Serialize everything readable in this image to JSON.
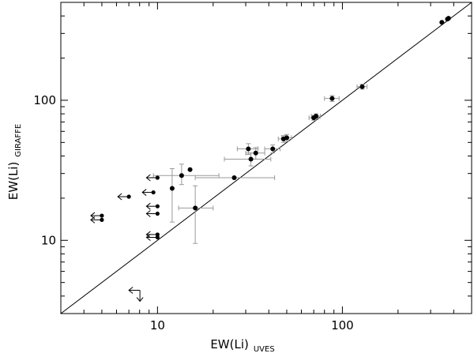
{
  "chart_data": {
    "type": "scatter",
    "xscale": "log",
    "yscale": "log",
    "xlim": [
      3,
      500
    ],
    "ylim": [
      3,
      500
    ],
    "xlabel_main": "EW(Li)",
    "xlabel_sub": "UVES",
    "ylabel_main": "EW(Li)",
    "ylabel_sub": "GIRAFFE",
    "xtick_labels": [
      {
        "value": 10,
        "label": "10"
      },
      {
        "value": 100,
        "label": "100"
      }
    ],
    "ytick_labels": [
      {
        "value": 10,
        "label": "10"
      },
      {
        "value": 100,
        "label": "100"
      }
    ],
    "grid": false,
    "one_to_one_line": true,
    "colors": {
      "points": "#000000",
      "errorbars": "#9a9a9a",
      "line": "#000000"
    },
    "points": [
      {
        "x": 375,
        "y": 385,
        "xerr": [
          0,
          0
        ],
        "yerr": [
          0,
          0
        ]
      },
      {
        "x": 370,
        "y": 380,
        "xerr": [
          0,
          0
        ],
        "yerr": [
          0,
          0
        ]
      },
      {
        "x": 345,
        "y": 360,
        "xerr": [
          0,
          0
        ],
        "yerr": [
          0,
          0
        ]
      },
      {
        "x": 128,
        "y": 125,
        "xerr": [
          8,
          8
        ],
        "yerr": [
          5,
          5
        ]
      },
      {
        "x": 88,
        "y": 103,
        "xerr": [
          8,
          8
        ],
        "yerr": [
          5,
          5
        ]
      },
      {
        "x": 72,
        "y": 77,
        "xerr": [
          4,
          4
        ],
        "yerr": [
          3,
          3
        ]
      },
      {
        "x": 70,
        "y": 75,
        "xerr": [
          4,
          4
        ],
        "yerr": [
          3,
          3
        ]
      },
      {
        "x": 50,
        "y": 54,
        "xerr": [
          3,
          3
        ],
        "yerr": [
          3,
          3
        ]
      },
      {
        "x": 48,
        "y": 53,
        "xerr": [
          3,
          3
        ],
        "yerr": [
          3,
          3
        ]
      },
      {
        "x": 42,
        "y": 45,
        "xerr": [
          4,
          4
        ],
        "yerr": [
          3,
          3
        ]
      },
      {
        "x": 34,
        "y": 42,
        "xerr": [
          4,
          4
        ],
        "yerr": [
          4,
          4
        ]
      },
      {
        "x": 31,
        "y": 45,
        "xerr": [
          4,
          4
        ],
        "yerr": [
          4,
          4
        ]
      },
      {
        "x": 32,
        "y": 38,
        "xerr": [
          9,
          9
        ],
        "yerr": [
          4,
          4
        ]
      },
      {
        "x": 26,
        "y": 28,
        "xerr": [
          10,
          17
        ],
        "yerr": [
          0,
          0
        ]
      },
      {
        "x": 15,
        "y": 32,
        "xerr": [
          0,
          0
        ],
        "yerr": [
          0,
          0
        ]
      },
      {
        "x": 13.5,
        "y": 29,
        "xerr": [
          4,
          8
        ],
        "yerr": [
          4,
          6
        ]
      },
      {
        "x": 12,
        "y": 23.5,
        "xerr": [
          0,
          0
        ],
        "yerr": [
          10,
          9
        ]
      },
      {
        "x": 16,
        "y": 17,
        "xerr": [
          3,
          4
        ],
        "yerr": [
          7.5,
          7.5
        ]
      }
    ],
    "upper_limits": [
      {
        "x": 10,
        "y": 28
      },
      {
        "x": 7,
        "y": 20.5
      },
      {
        "x": 9.5,
        "y": 22
      },
      {
        "x": 10,
        "y": 17.5
      },
      {
        "x": 10,
        "y": 15.5
      },
      {
        "x": 10,
        "y": 11
      },
      {
        "x": 10,
        "y": 10.5
      },
      {
        "x": 5,
        "y": 15
      },
      {
        "x": 5,
        "y": 14
      }
    ],
    "double_limit": {
      "x": 7,
      "y": 4.4
    }
  }
}
